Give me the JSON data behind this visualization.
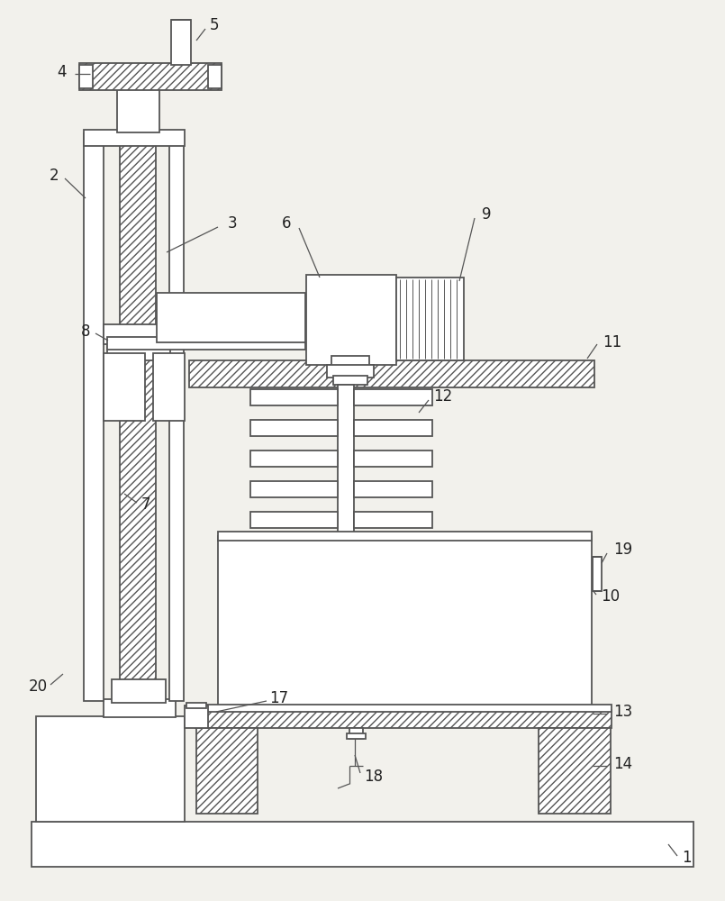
{
  "bg_color": "#f2f1ec",
  "lc": "#555555",
  "lw": 1.3,
  "lw_thin": 0.8,
  "label_fs": 12,
  "label_color": "#222222"
}
